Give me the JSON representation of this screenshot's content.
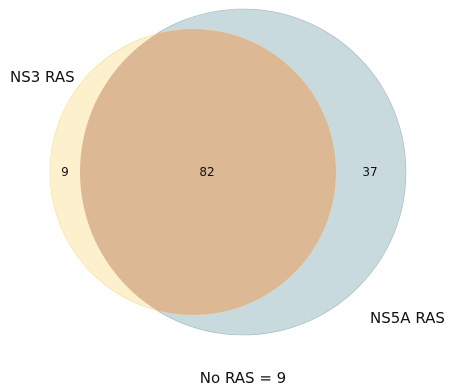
{
  "diagram": {
    "sets": [
      {
        "name": "NS3 RAS",
        "color": "#fbecc0"
      },
      {
        "name": "NS5A RAS",
        "color": "#b6ced2"
      }
    ],
    "overlap_color": "#dcb894",
    "regions": {
      "ns3_only": "9",
      "both": "82",
      "ns5a_only": "37"
    },
    "footer": "No RAS = 9"
  }
}
